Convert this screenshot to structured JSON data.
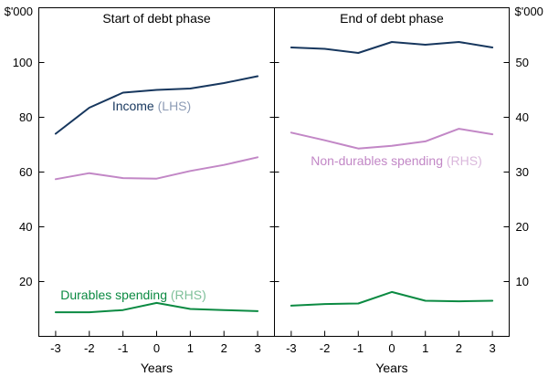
{
  "chart_data": {
    "type": "line",
    "unit_left": "$'000",
    "unit_right": "$'000",
    "xlabel": "Years",
    "x": [
      -3,
      -2,
      -1,
      0,
      1,
      2,
      3
    ],
    "left_axis": {
      "min": 0,
      "max": 120,
      "ticks": [
        20,
        40,
        60,
        80,
        100
      ]
    },
    "right_axis": {
      "min": 0,
      "max": 60,
      "ticks": [
        10,
        20,
        30,
        40,
        50
      ]
    },
    "legend_position": "inline-annotations",
    "grid": false,
    "panels": [
      {
        "title": "Start of debt phase",
        "series": [
          {
            "name": "Income",
            "axis": "left",
            "color": "#17375e",
            "values": [
              74,
              83.5,
              89,
              90,
              90.5,
              92.5,
              95
            ]
          },
          {
            "name": "Non-durables spending",
            "axis": "right",
            "color": "#c287c6",
            "values": [
              28.7,
              29.8,
              28.9,
              28.8,
              30.2,
              31.3,
              32.7
            ]
          },
          {
            "name": "Durables spending",
            "axis": "right",
            "color": "#0b8a42",
            "values": [
              4.4,
              4.4,
              4.8,
              6.1,
              5,
              4.8,
              4.6
            ]
          }
        ]
      },
      {
        "title": "End of debt phase",
        "series": [
          {
            "name": "Income",
            "axis": "left",
            "color": "#17375e",
            "values": [
              105.5,
              105,
              103.5,
              107.5,
              106.5,
              107.5,
              105.5
            ]
          },
          {
            "name": "Non-durables spending",
            "axis": "right",
            "color": "#c287c6",
            "values": [
              37.2,
              35.8,
              34.3,
              34.8,
              35.6,
              37.9,
              36.9
            ]
          },
          {
            "name": "Durables spending",
            "axis": "right",
            "color": "#0b8a42",
            "values": [
              5.6,
              5.9,
              6,
              8.1,
              6.5,
              6.4,
              6.5
            ]
          }
        ]
      }
    ],
    "series_labels": [
      {
        "text": "Income",
        "suffix": "(LHS)",
        "color": "#17375e",
        "suffix_color": "#8d9cb6"
      },
      {
        "text": "Durables spending",
        "suffix": "(RHS)",
        "color": "#0b8a42",
        "suffix_color": "#7fc09a"
      },
      {
        "text": "Non-durables spending",
        "suffix": "(RHS)",
        "color": "#c287c6",
        "suffix_color": "#dab8dc"
      }
    ]
  }
}
